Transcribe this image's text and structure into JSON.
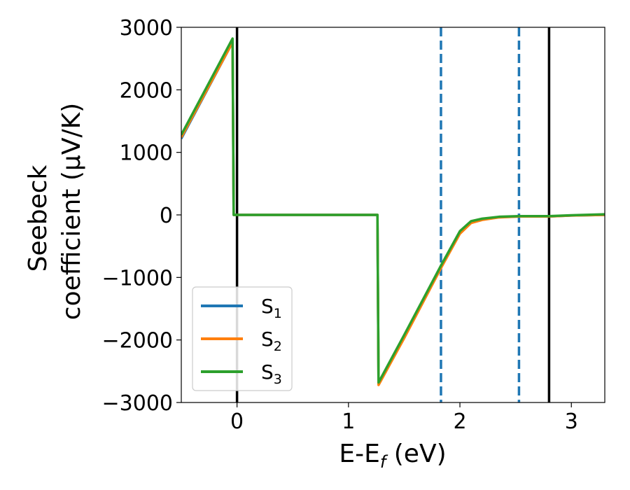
{
  "chart_data": {
    "type": "line",
    "xlabel": {
      "main": "E-E",
      "sub": "f",
      "tail": " (eV)"
    },
    "ylabel": {
      "line1": "Seebeck",
      "line2": "coefficient  (μV/K)"
    },
    "xlim": [
      -0.5,
      3.3
    ],
    "ylim": [
      -3000,
      3000
    ],
    "xticks": [
      0,
      1,
      2,
      3
    ],
    "xtick_labels": [
      "0",
      "1",
      "2",
      "3"
    ],
    "yticks": [
      3000,
      2000,
      1000,
      0,
      -1000,
      -2000,
      -3000
    ],
    "ytick_labels": [
      "3000",
      "2000",
      "1000",
      "0",
      "−1000",
      "−2000",
      "−3000"
    ],
    "grid": false,
    "legend_position": "lower-left",
    "vlines": [
      {
        "x": 0,
        "style": "solid",
        "color": "#000000"
      },
      {
        "x": 2.8,
        "style": "solid",
        "color": "#000000"
      },
      {
        "x": 1.83,
        "style": "dashed",
        "color": "#1f77b4"
      },
      {
        "x": 2.53,
        "style": "dashed",
        "color": "#1f77b4"
      }
    ],
    "series": [
      {
        "name": "S",
        "sub": "1",
        "color": "#1f77b4",
        "points": [
          [
            -0.5,
            1220
          ],
          [
            -0.04,
            2760
          ],
          [
            -0.03,
            0
          ],
          [
            1.26,
            0
          ],
          [
            1.27,
            -2700
          ],
          [
            1.5,
            -1950
          ],
          [
            1.83,
            -830
          ],
          [
            2.0,
            -280
          ],
          [
            2.1,
            -120
          ],
          [
            2.2,
            -70
          ],
          [
            2.35,
            -35
          ],
          [
            2.53,
            -25
          ],
          [
            2.8,
            -25
          ],
          [
            3.0,
            -10
          ],
          [
            3.3,
            0
          ]
        ]
      },
      {
        "name": "S",
        "sub": "2",
        "color": "#ff7f0e",
        "points": [
          [
            -0.5,
            1240
          ],
          [
            -0.04,
            2760
          ],
          [
            -0.03,
            0
          ],
          [
            1.26,
            0
          ],
          [
            1.27,
            -2720
          ],
          [
            1.5,
            -1970
          ],
          [
            1.83,
            -850
          ],
          [
            2.0,
            -300
          ],
          [
            2.1,
            -130
          ],
          [
            2.2,
            -80
          ],
          [
            2.35,
            -40
          ],
          [
            2.53,
            -25
          ],
          [
            2.8,
            -25
          ],
          [
            3.0,
            -10
          ],
          [
            3.3,
            0
          ]
        ]
      },
      {
        "name": "S",
        "sub": "3",
        "color": "#2ca02c",
        "points": [
          [
            -0.5,
            1280
          ],
          [
            -0.04,
            2820
          ],
          [
            -0.03,
            0
          ],
          [
            1.26,
            0
          ],
          [
            1.27,
            -2680
          ],
          [
            1.5,
            -1920
          ],
          [
            1.83,
            -810
          ],
          [
            2.0,
            -260
          ],
          [
            2.1,
            -100
          ],
          [
            2.2,
            -60
          ],
          [
            2.35,
            -30
          ],
          [
            2.53,
            -20
          ],
          [
            2.8,
            -20
          ],
          [
            3.0,
            -5
          ],
          [
            3.3,
            10
          ]
        ]
      }
    ]
  }
}
